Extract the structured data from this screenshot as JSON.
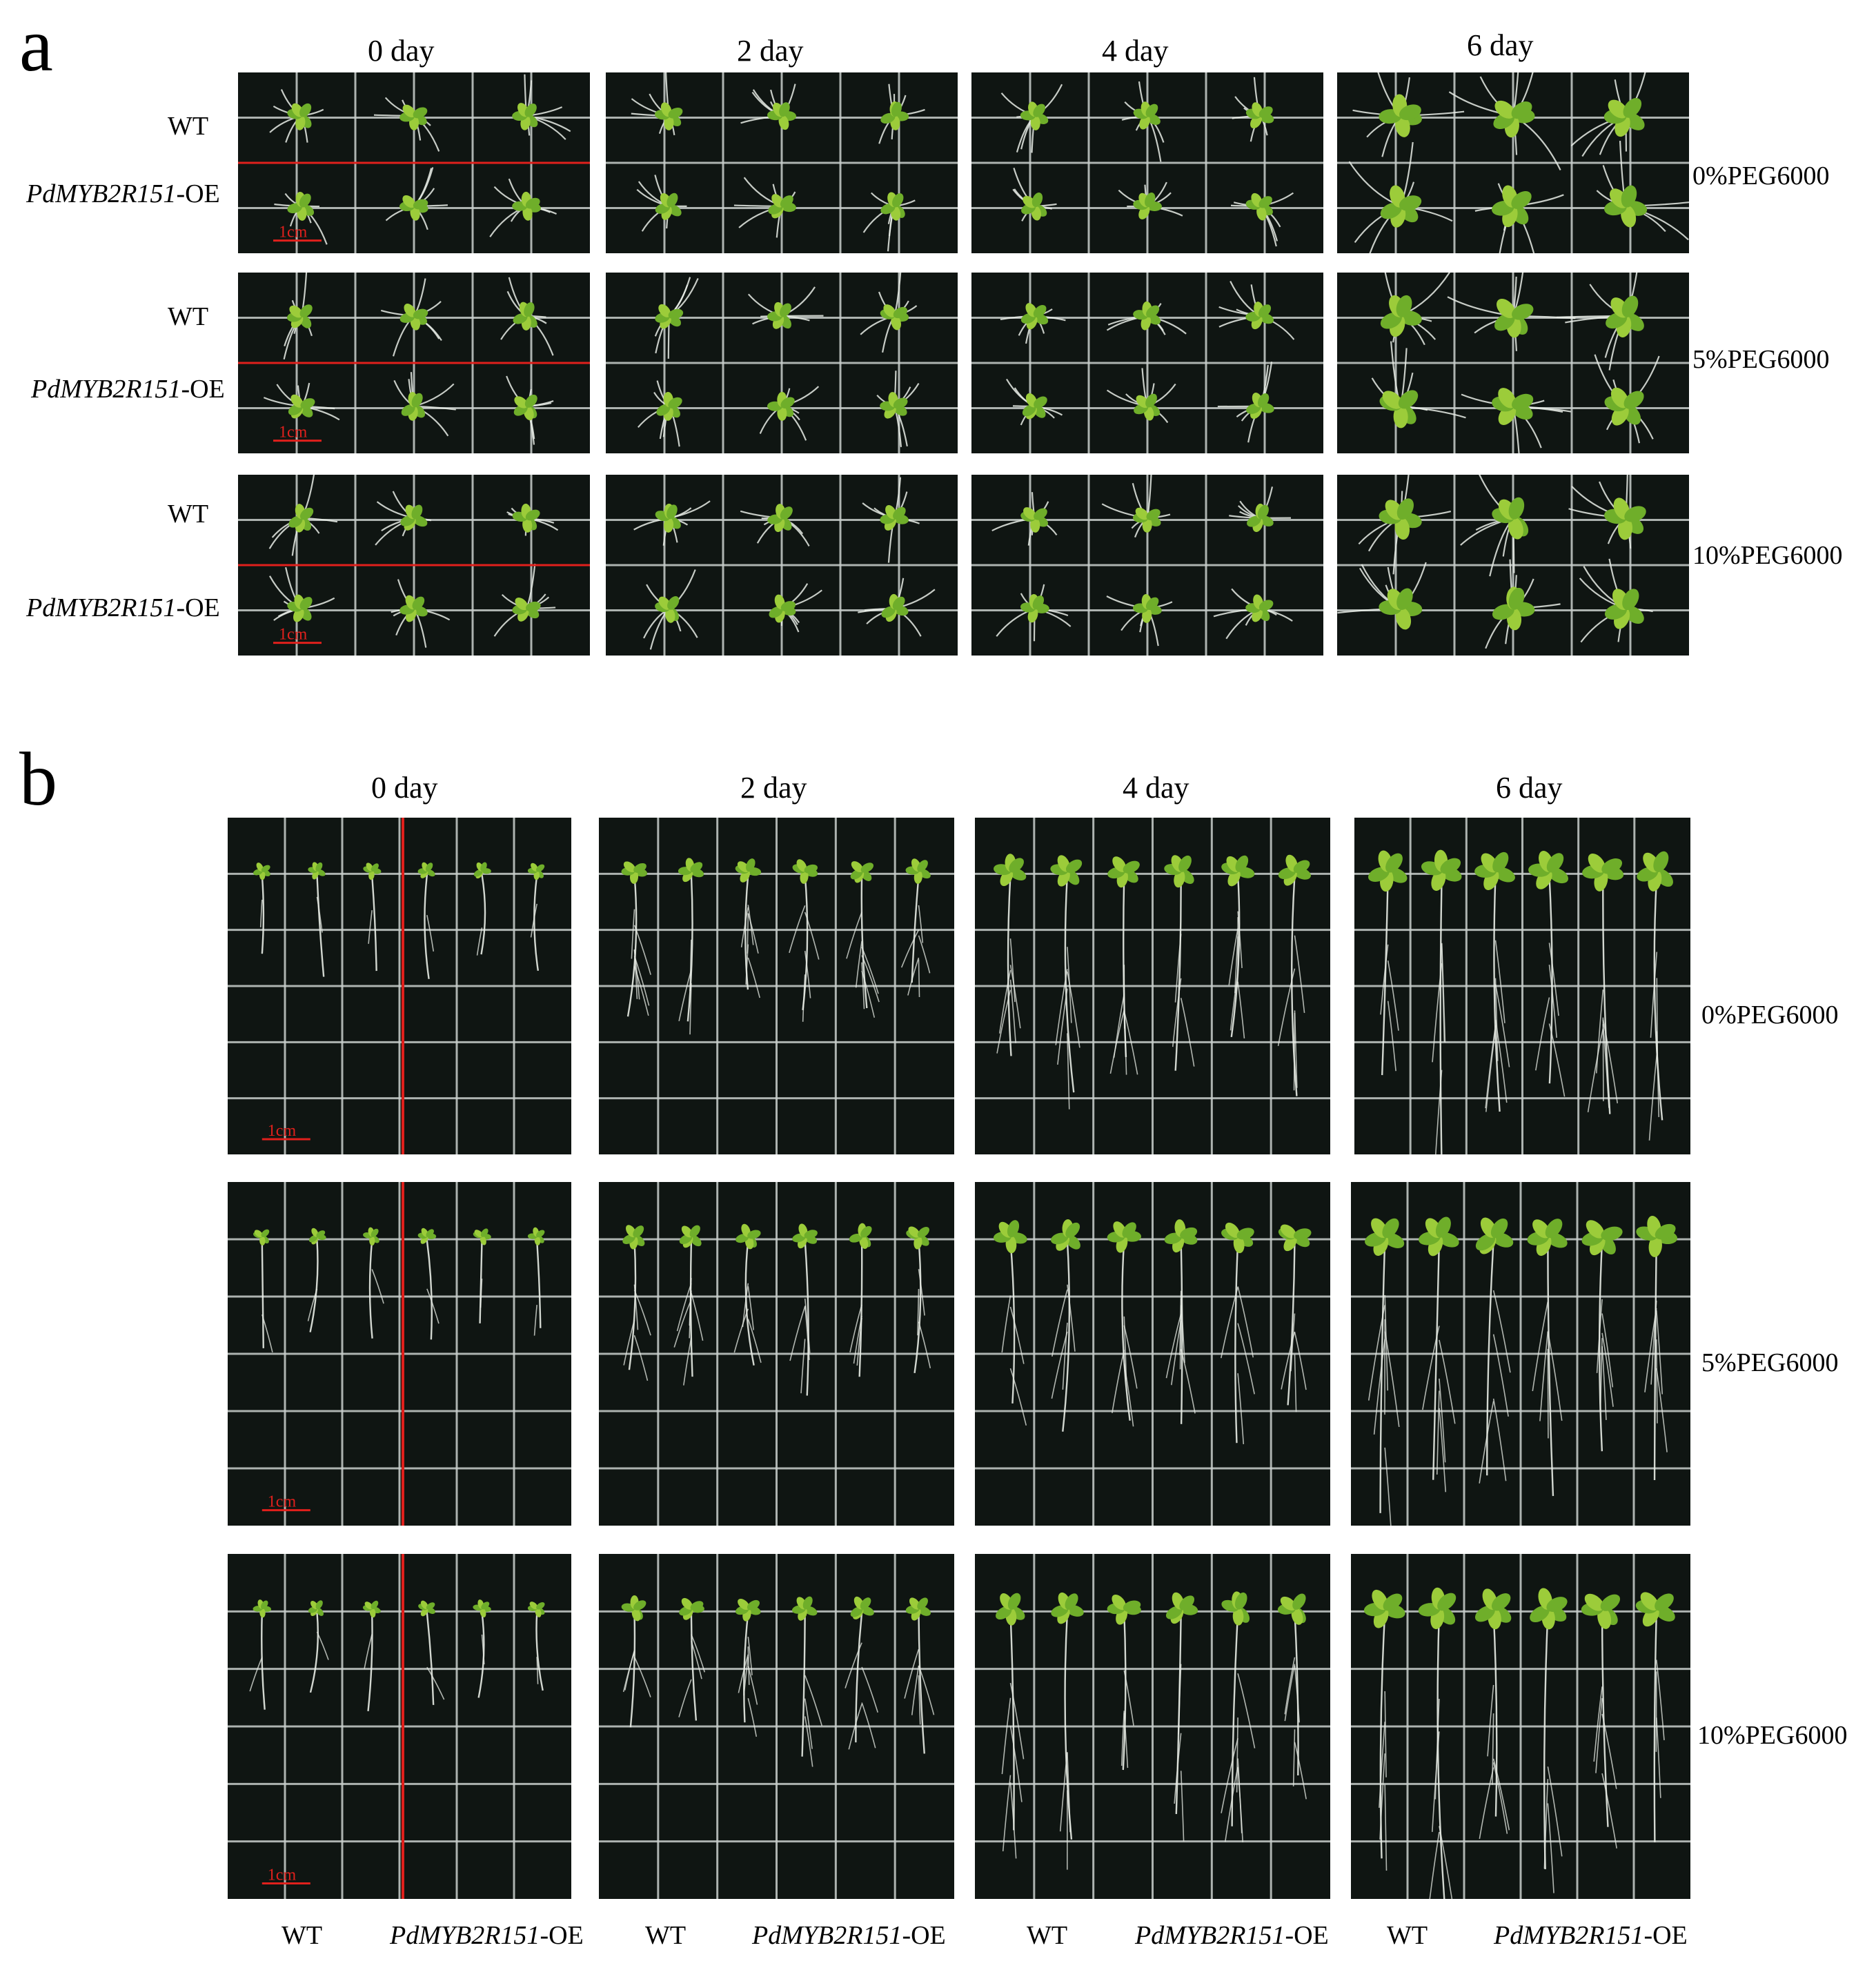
{
  "panel_a": {
    "letter": "a",
    "days": [
      "0 day",
      "2 day",
      "4 day",
      "6 day"
    ],
    "row_labels": [
      {
        "wt": "WT",
        "oe_gene": "PdMYB2R151",
        "oe_suffix": "-OE"
      },
      {
        "wt": "WT",
        "oe_gene": "PdMYB2R151",
        "oe_suffix": "-OE"
      },
      {
        "wt": "WT",
        "oe_gene": "PdMYB2R151",
        "oe_suffix": "-OE"
      }
    ],
    "conditions": [
      "0%PEG6000",
      "5%PEG6000",
      "10%PEG6000"
    ],
    "scale": "1cm"
  },
  "panel_b": {
    "letter": "b",
    "days": [
      "0 day",
      "2 day",
      "4 day",
      "6 day"
    ],
    "conditions": [
      "0%PEG6000",
      "5%PEG6000",
      "10%PEG6000"
    ],
    "scale": "1cm",
    "bottom_labels": [
      {
        "wt": "WT",
        "oe_gene": "PdMYB2R151",
        "oe_suffix": "-OE"
      },
      {
        "wt": "WT",
        "oe_gene": "PdMYB2R151",
        "oe_suffix": "-OE"
      },
      {
        "wt": "WT",
        "oe_gene": "PdMYB2R151",
        "oe_suffix": "-OE"
      },
      {
        "wt": "WT",
        "oe_gene": "PdMYB2R151",
        "oe_suffix": "-OE"
      }
    ]
  },
  "colors": {
    "plate_bg": "#0f1512",
    "grid_line": "#c9cfcc",
    "separator": "#e0201c",
    "seedling": "#9ccc3a",
    "root": "#e8ece6"
  }
}
